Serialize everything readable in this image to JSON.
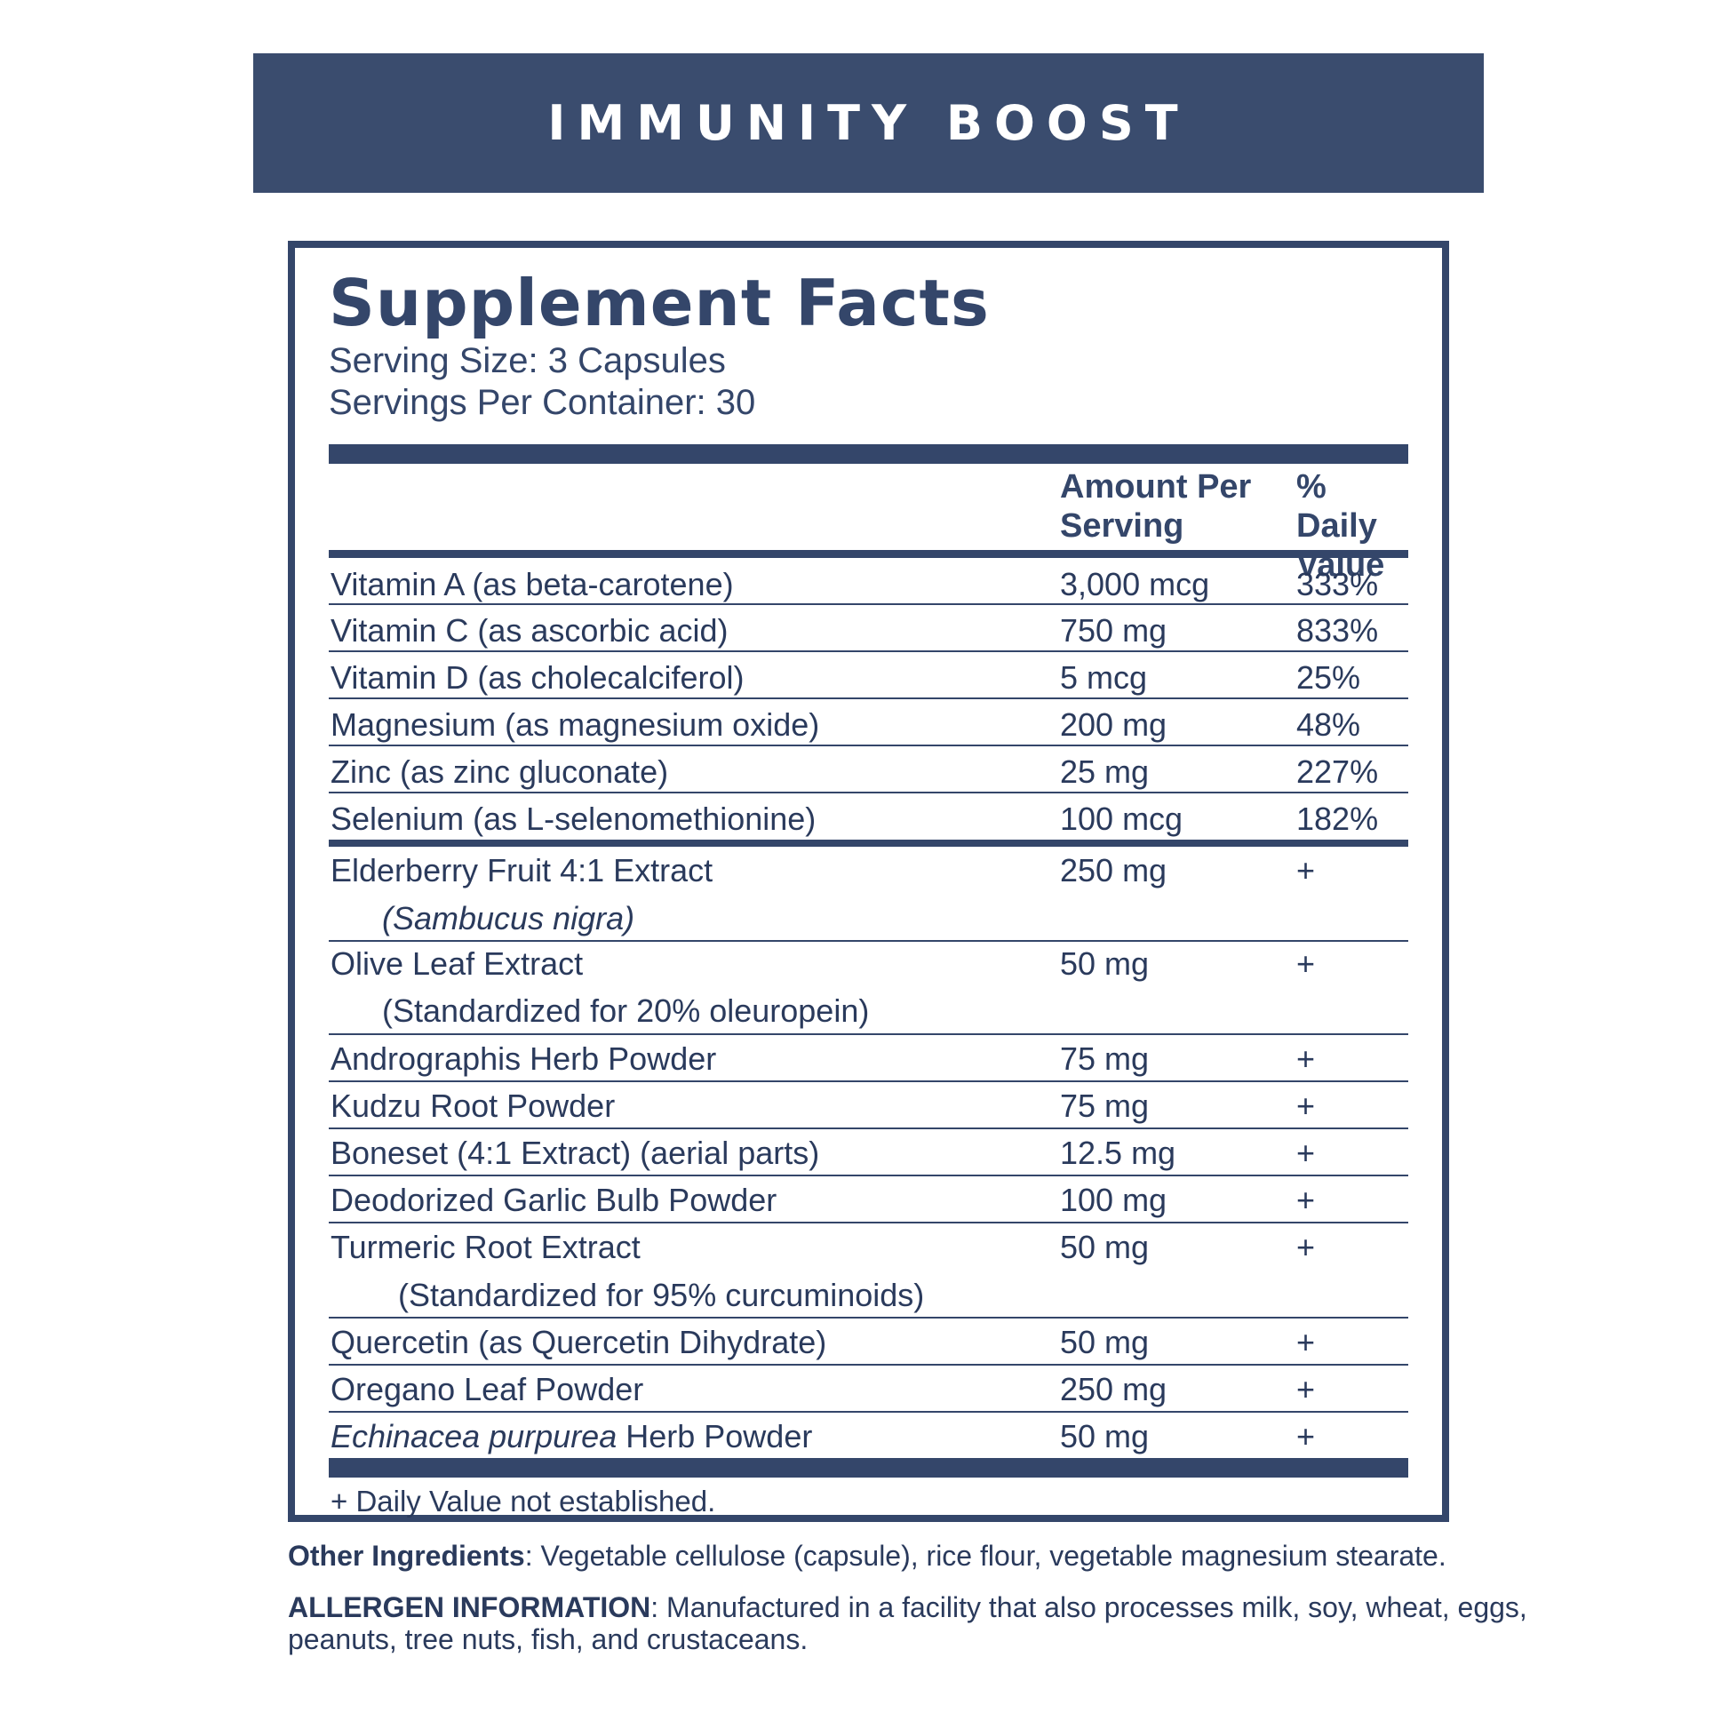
{
  "banner": {
    "title": "IMMUNITY BOOST"
  },
  "facts": {
    "title": "Supplement Facts",
    "serving_size": "Serving Size: 3 Capsules",
    "servings_per_container": "Servings Per Container: 30",
    "col_amount_1": "Amount Per",
    "col_amount_2": "Serving",
    "col_dv_1": "% Daily",
    "col_dv_2": "Value",
    "vitamins": [
      {
        "name": "Vitamin A (as beta-carotene)",
        "amount": "3,000 mcg",
        "dv": "333%"
      },
      {
        "name": "Vitamin C (as ascorbic acid)",
        "amount": "750 mg",
        "dv": "833%"
      },
      {
        "name": "Vitamin D (as cholecalciferol)",
        "amount": "5 mcg",
        "dv": "25%"
      },
      {
        "name": "Magnesium (as magnesium oxide)",
        "amount": "200 mg",
        "dv": "48%"
      },
      {
        "name": "Zinc (as zinc gluconate)",
        "amount": "25 mg",
        "dv": "227%"
      },
      {
        "name": "Selenium (as L-selenomethionine)",
        "amount": "100 mcg",
        "dv": "182%"
      }
    ],
    "botanicals": [
      {
        "name": "Elderberry Fruit 4:1 Extract",
        "sub": "(Sambucus nigra)",
        "amount": "250 mg",
        "dv": "+"
      },
      {
        "name": "Olive Leaf Extract",
        "sub": "(Standardized for 20% oleuropein)",
        "amount": "50 mg",
        "dv": "+"
      },
      {
        "name": "Andrographis Herb Powder",
        "amount": "75 mg",
        "dv": "+"
      },
      {
        "name": "Kudzu Root Powder",
        "amount": "75 mg",
        "dv": "+"
      },
      {
        "name": "Boneset (4:1 Extract) (aerial parts)",
        "amount": "12.5 mg",
        "dv": "+"
      },
      {
        "name": "Deodorized Garlic Bulb Powder",
        "amount": "100 mg",
        "dv": "+"
      },
      {
        "name": "Turmeric Root Extract",
        "sub": "(Standardized for 95% curcuminoids)",
        "amount": "50 mg",
        "dv": "+"
      },
      {
        "name": "Quercetin (as Quercetin Dihydrate)",
        "amount": "50 mg",
        "dv": "+"
      },
      {
        "name": "Oregano Leaf Powder",
        "amount": "250 mg",
        "dv": "+"
      },
      {
        "name_italic": "Echinacea purpurea",
        "name_rest": " Herb Powder",
        "amount": "50 mg",
        "dv": "+"
      }
    ],
    "footnote": "+ Daily Value not established."
  },
  "other_ingredients": {
    "label": "Other Ingredients",
    "text": ": Vegetable cellulose (capsule), rice flour, vegetable magnesium stearate."
  },
  "allergen": {
    "label": "ALLERGEN INFORMATION",
    "text_1": ": Manufactured in a facility that also processes milk, soy, wheat, eggs,",
    "text_2": "peanuts, tree nuts, fish, and crustaceans."
  }
}
